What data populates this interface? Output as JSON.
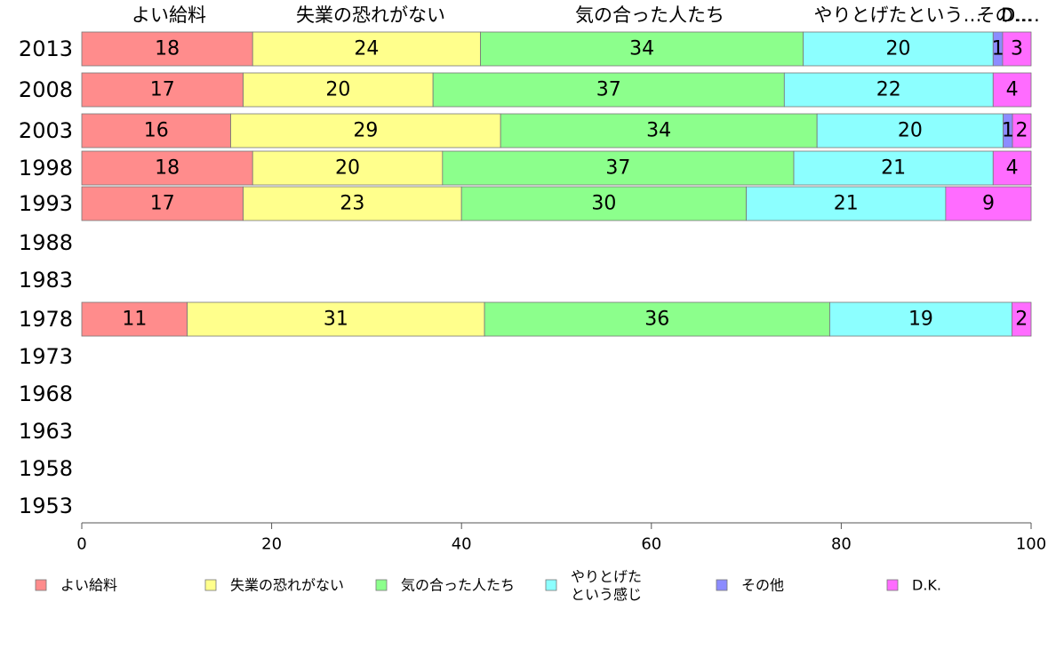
{
  "chart_data": {
    "type": "bar",
    "orientation": "horizontal",
    "stacked": true,
    "categories": [
      "2013",
      "2008",
      "2003",
      "1998",
      "1993",
      "1988",
      "1983",
      "1978",
      "1973",
      "1968",
      "1963",
      "1958",
      "1953"
    ],
    "series": [
      {
        "name": "よい給料",
        "color": "#ff8c8c",
        "values": [
          18,
          17,
          16,
          18,
          17,
          null,
          null,
          11,
          null,
          null,
          null,
          null,
          null
        ]
      },
      {
        "name": "失業の恐れがない",
        "color": "#ffff8c",
        "values": [
          24,
          20,
          29,
          20,
          23,
          null,
          null,
          31,
          null,
          null,
          null,
          null,
          null
        ]
      },
      {
        "name": "気の合った人たち",
        "color": "#8cff8c",
        "values": [
          34,
          37,
          34,
          37,
          30,
          null,
          null,
          36,
          null,
          null,
          null,
          null,
          null
        ]
      },
      {
        "name": "やりとげた\nという感じ",
        "color": "#8cffff",
        "values": [
          20,
          22,
          20,
          21,
          21,
          null,
          null,
          19,
          null,
          null,
          null,
          null,
          null
        ]
      },
      {
        "name": "その他",
        "color": "#8c8cff",
        "values": [
          1,
          0,
          1,
          0,
          0,
          null,
          null,
          0,
          null,
          null,
          null,
          null,
          null
        ]
      },
      {
        "name": "D.K.",
        "color": "#ff6cff",
        "values": [
          3,
          4,
          2,
          4,
          9,
          null,
          null,
          2,
          null,
          null,
          null,
          null,
          null
        ]
      }
    ],
    "top_labels": [
      "よい給料",
      "失業の恐れがない",
      "気の合った人たち",
      "やりとげたという感じ",
      "その他",
      "D.K."
    ],
    "top_labels_display": [
      "よい給料",
      "失業の恐れがない",
      "気の合った人たち",
      "やりとげたという…",
      "その…",
      "D.…"
    ],
    "xlim": [
      0,
      100
    ],
    "xticks": [
      0,
      20,
      40,
      60,
      80,
      100
    ],
    "title": "",
    "xlabel": "",
    "ylabel": "",
    "grid": false,
    "legend_position": "bottom"
  }
}
